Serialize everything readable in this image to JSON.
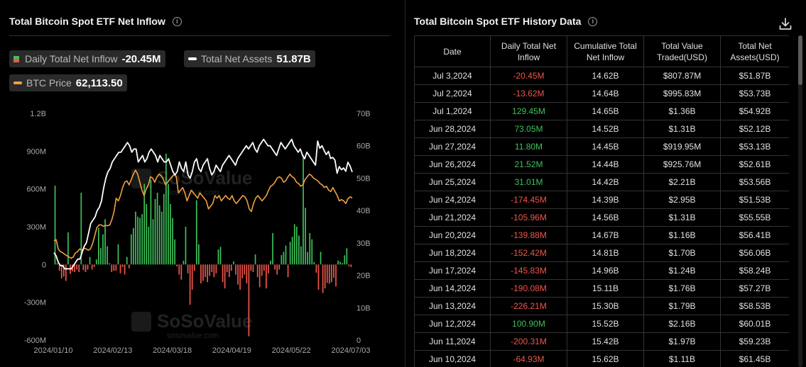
{
  "left": {
    "title": "Total Bitcoin Spot ETF Net Inflow",
    "legend": {
      "inflow_label": "Daily Total Net Inflow",
      "inflow_value": "-20.45M",
      "assets_label": "Total Net Assets",
      "assets_value": "51.87B",
      "btc_label": "BTC Price",
      "btc_value": "62,113.50"
    },
    "watermark": {
      "text": "SoSoValue",
      "sub": "sosovalue.com"
    }
  },
  "right": {
    "title": "Total Bitcoin Spot ETF History Data",
    "columns": [
      "Date",
      "Daily Total Net Inflow",
      "Cumulative Total Net Inflow",
      "Total Value Traded(USD)",
      "Total Net Assets(USD)"
    ],
    "rows": [
      [
        "Jul 3,2024",
        "-20.45M",
        "14.62B",
        "$807.87M",
        "$51.87B"
      ],
      [
        "Jul 2,2024",
        "-13.62M",
        "14.64B",
        "$995.83M",
        "$53.73B"
      ],
      [
        "Jul 1,2024",
        "129.45M",
        "14.65B",
        "$1.36B",
        "$54.92B"
      ],
      [
        "Jun 28,2024",
        "73.05M",
        "14.52B",
        "$1.31B",
        "$52.12B"
      ],
      [
        "Jun 27,2024",
        "11.80M",
        "14.45B",
        "$919.95M",
        "$53.13B"
      ],
      [
        "Jun 26,2024",
        "21.52M",
        "14.44B",
        "$925.76M",
        "$52.61B"
      ],
      [
        "Jun 25,2024",
        "31.01M",
        "14.42B",
        "$2.21B",
        "$53.56B"
      ],
      [
        "Jun 24,2024",
        "-174.45M",
        "14.39B",
        "$2.95B",
        "$51.53B"
      ],
      [
        "Jun 21,2024",
        "-105.96M",
        "14.56B",
        "$1.31B",
        "$55.55B"
      ],
      [
        "Jun 20,2024",
        "-139.88M",
        "14.67B",
        "$1.16B",
        "$56.41B"
      ],
      [
        "Jun 18,2024",
        "-152.42M",
        "14.81B",
        "$1.70B",
        "$56.06B"
      ],
      [
        "Jun 17,2024",
        "-145.83M",
        "14.96B",
        "$1.24B",
        "$58.24B"
      ],
      [
        "Jun 14,2024",
        "-190.08M",
        "15.11B",
        "$1.76B",
        "$57.27B"
      ],
      [
        "Jun 13,2024",
        "-226.21M",
        "15.30B",
        "$1.79B",
        "$58.53B"
      ],
      [
        "Jun 12,2024",
        "100.90M",
        "15.52B",
        "$2.16B",
        "$60.01B"
      ],
      [
        "Jun 11,2024",
        "-200.31M",
        "15.42B",
        "$1.97B",
        "$59.23B"
      ],
      [
        "Jun 10,2024",
        "-64.93M",
        "15.62B",
        "$1.11B",
        "$61.45B"
      ]
    ]
  },
  "colors": {
    "positive": "#3dc25a",
    "negative": "#f0564a",
    "btc": "#f0a040",
    "assets": "#ffffff",
    "bg": "#000000"
  },
  "chart_data": {
    "type": "bar+line",
    "title": "Total Bitcoin Spot ETF Net Inflow",
    "x_ticks": [
      "2024/01/10",
      "2024/02/13",
      "2024/03/18",
      "2024/04/19",
      "2024/05/22",
      "2024/07/03"
    ],
    "y_left": {
      "ticks": [
        "1.2B",
        "900M",
        "600M",
        "300M",
        "0",
        "-300M",
        "-600M"
      ],
      "range_millions": [
        -600,
        1200
      ]
    },
    "y_right": {
      "ticks": [
        "70B",
        "60B",
        "50B",
        "40B",
        "30B",
        "20B",
        "10B",
        "0"
      ],
      "range_billions": [
        0,
        70
      ]
    },
    "grid": false,
    "series": [
      {
        "name": "Daily Total Net Inflow",
        "kind": "bar",
        "unit": "M",
        "values": [
          625,
          10,
          -50,
          -110,
          -95,
          -130,
          255,
          -75,
          -55,
          -60,
          -40,
          -60,
          570,
          -45,
          -60,
          -40,
          60,
          -40,
          -20,
          40,
          290,
          130,
          240,
          360,
          145,
          10,
          -60,
          -50,
          -50,
          160,
          -70,
          -20,
          -80,
          60,
          -30,
          240,
          290,
          420,
          380,
          370,
          400,
          640,
          480,
          300,
          670,
          360,
          520,
          570,
          470,
          420,
          560,
          880,
          640,
          480,
          370,
          200,
          -15,
          -80,
          -120,
          30,
          300,
          -70,
          -320,
          -200,
          -50,
          510,
          160,
          -150,
          -130,
          -100,
          -140,
          -90,
          -60,
          -100,
          -70,
          120,
          140,
          -140,
          -190,
          -60,
          -100,
          -50,
          25,
          -80,
          -160,
          -200,
          -110,
          -80,
          -150,
          -570,
          -50,
          -60,
          80,
          -100,
          -180,
          -90,
          -50,
          -190,
          -70,
          30,
          250,
          -40,
          -80,
          -40,
          75,
          100,
          150,
          -100,
          180,
          220,
          320,
          300,
          230,
          145,
          870,
          450,
          100,
          250,
          200,
          20,
          -64.93,
          -200.31,
          100.9,
          -226.21,
          -190.08,
          -145.83,
          -152.42,
          -139.88,
          -105.96,
          -174.45,
          31.01,
          21.52,
          11.8,
          73.05,
          129.45,
          -13.62,
          -20.45
        ]
      },
      {
        "name": "Total Net Assets",
        "kind": "line",
        "unit": "B",
        "values": [
          27,
          26,
          24,
          23,
          23,
          22,
          22,
          22,
          22,
          23,
          24,
          25,
          25,
          27,
          29,
          30,
          33,
          36,
          37,
          38,
          40,
          41,
          43,
          47,
          50,
          52,
          53,
          55,
          56,
          57,
          58,
          58,
          59,
          60,
          61,
          60,
          58,
          59,
          59,
          55,
          56,
          57,
          55,
          56,
          58,
          59,
          58,
          57,
          55,
          57,
          56,
          55,
          55,
          56,
          54,
          52,
          51,
          52,
          55,
          53,
          52,
          55,
          51,
          50,
          52,
          55,
          56,
          53,
          52,
          54,
          55,
          56,
          53,
          51,
          52,
          54,
          53,
          52,
          54,
          55,
          56,
          57,
          56,
          55,
          54,
          56,
          57,
          58,
          59,
          60,
          59,
          60,
          61,
          59,
          58,
          60,
          61,
          62,
          61,
          60,
          60,
          59,
          58,
          57,
          59,
          61,
          60,
          59,
          60,
          61,
          62,
          60,
          59,
          58,
          59,
          57,
          56,
          58,
          57,
          56,
          55,
          54,
          61.45,
          59.23,
          60.01,
          58.53,
          57.27,
          58.24,
          56.06,
          56.41,
          55.55,
          51.53,
          53.56,
          52.61,
          53.13,
          52.12,
          54.92,
          53.73,
          51.87
        ]
      },
      {
        "name": "BTC Price",
        "kind": "line",
        "unit": "USD",
        "values": [
          46000,
          46500,
          43000,
          42000,
          41600,
          41000,
          40500,
          40000,
          39500,
          40000,
          41500,
          42000,
          43000,
          42500,
          43300,
          43000,
          42500,
          43000,
          45000,
          48000,
          51000,
          52000,
          52000,
          51500,
          51800,
          51700,
          52000,
          54000,
          57000,
          62000,
          61000,
          63000,
          66000,
          68000,
          68500,
          67000,
          69000,
          71000,
          72500,
          71000,
          68000,
          65000,
          63000,
          65500,
          67000,
          70000,
          69500,
          68000,
          70000,
          71000,
          70500,
          69000,
          67000,
          68000,
          69000,
          70000,
          71000,
          70000,
          64000,
          65000,
          66000,
          64000,
          61000,
          63000,
          65000,
          64000,
          63000,
          62000,
          64000,
          63000,
          62000,
          61000,
          58000,
          59000,
          60000,
          63000,
          62000,
          63000,
          61000,
          62000,
          63000,
          62000,
          61500,
          63000,
          61000,
          60000,
          61000,
          62000,
          63000,
          62500,
          61000,
          58000,
          57000,
          60000,
          62000,
          63000,
          62000,
          61000,
          62000,
          63000,
          65000,
          66500,
          67000,
          68000,
          69500,
          70000,
          69500,
          68000,
          68500,
          70000,
          71000,
          70000,
          69500,
          68000,
          67500,
          66500,
          67000,
          69000,
          70000,
          71000,
          70500,
          69500,
          69000,
          68500,
          67500,
          67000,
          66000,
          66500,
          65000,
          64500,
          66000,
          64500,
          63000,
          61000,
          61500,
          61000,
          60000,
          61800,
          62500,
          62100
        ]
      }
    ]
  }
}
